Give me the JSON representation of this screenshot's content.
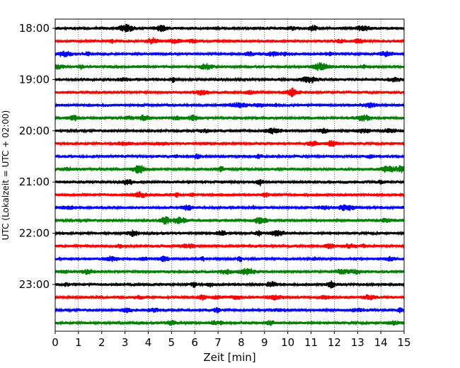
{
  "chart_data": {
    "type": "line",
    "subtype": "helicorder-seismogram",
    "title": "",
    "xlabel": "Zeit  [min]",
    "ylabel": "UTC (Lokalzeit = UTC + 02:00)",
    "xlim": [
      0,
      15
    ],
    "x_ticks": [
      "0",
      "1",
      "2",
      "3",
      "4",
      "5",
      "6",
      "7",
      "8",
      "9",
      "10",
      "11",
      "12",
      "13",
      "14",
      "15"
    ],
    "y_tick_labels": [
      "18:00",
      "19:00",
      "20:00",
      "21:00",
      "22:00",
      "23:00"
    ],
    "rows_per_hour": 4,
    "row_minutes": 15,
    "row_colors": [
      "#000000",
      "#ff0000",
      "#0000ff",
      "#008000"
    ],
    "grid": "vertical dotted lines at each minute",
    "legend": "none",
    "series": [
      {
        "start": "18:00"
      },
      {
        "start": "18:15"
      },
      {
        "start": "18:30"
      },
      {
        "start": "18:45"
      },
      {
        "start": "19:00"
      },
      {
        "start": "19:15"
      },
      {
        "start": "19:30"
      },
      {
        "start": "19:45"
      },
      {
        "start": "20:00"
      },
      {
        "start": "20:15"
      },
      {
        "start": "20:30"
      },
      {
        "start": "20:45"
      },
      {
        "start": "21:00"
      },
      {
        "start": "21:15"
      },
      {
        "start": "21:30"
      },
      {
        "start": "21:45"
      },
      {
        "start": "22:00"
      },
      {
        "start": "22:15"
      },
      {
        "start": "22:30"
      },
      {
        "start": "22:45"
      },
      {
        "start": "23:00"
      },
      {
        "start": "23:15"
      },
      {
        "start": "23:30"
      },
      {
        "start": "23:45"
      }
    ]
  }
}
